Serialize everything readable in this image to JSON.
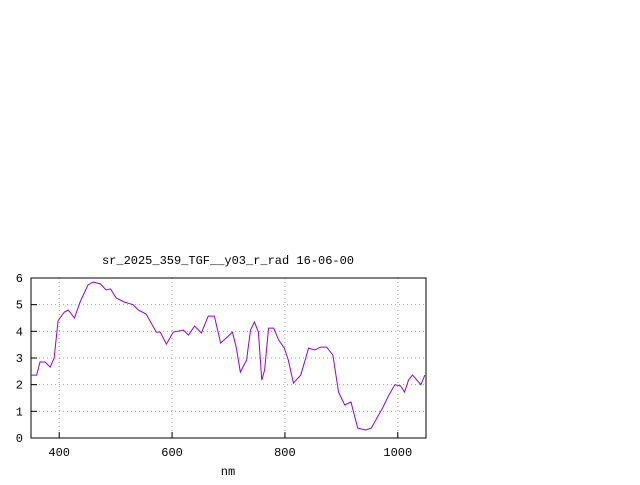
{
  "chart_data": {
    "type": "line",
    "title": "sr_2025_359_TGF__y03_r_rad 16-06-00",
    "x_label": "nm",
    "x": [
      350,
      360,
      366,
      375,
      384,
      391,
      398,
      409,
      416,
      427,
      437,
      451,
      460,
      473,
      483,
      491,
      501,
      515,
      531,
      540,
      554,
      562,
      572,
      579,
      590,
      602,
      620,
      629,
      640,
      652,
      664,
      675,
      686,
      696,
      707,
      714,
      721,
      732,
      739,
      746,
      753,
      759,
      764,
      771,
      780,
      789,
      799,
      806,
      815,
      828,
      842,
      853,
      863,
      874,
      885,
      895,
      906,
      917,
      929,
      943,
      953,
      963,
      973,
      984,
      995,
      1005,
      1012,
      1019,
      1026,
      1034,
      1041,
      1048
    ],
    "series": [
      {
        "name": null,
        "color": "#9400d3",
        "values": [
          2.36,
          2.36,
          2.85,
          2.85,
          2.66,
          3.0,
          4.4,
          4.72,
          4.8,
          4.5,
          5.1,
          5.74,
          5.85,
          5.78,
          5.55,
          5.59,
          5.25,
          5.1,
          5.0,
          4.8,
          4.65,
          4.35,
          3.97,
          3.97,
          3.52,
          3.97,
          4.05,
          3.86,
          4.2,
          3.94,
          4.57,
          4.57,
          3.56,
          3.75,
          3.97,
          3.37,
          2.47,
          2.92,
          4.05,
          4.35,
          3.97,
          2.17,
          2.55,
          4.12,
          4.12,
          3.67,
          3.37,
          2.92,
          2.06,
          2.36,
          3.37,
          3.3,
          3.41,
          3.41,
          3.11,
          1.72,
          1.24,
          1.35,
          0.37,
          0.3,
          0.37,
          0.75,
          1.12,
          1.6,
          2.0,
          1.95,
          1.72,
          2.17,
          2.36,
          2.17,
          2.0,
          2.36
        ]
      }
    ],
    "xlim": [
      350,
      1050
    ],
    "xticks": [
      400,
      600,
      800,
      1000
    ],
    "ylim": [
      0,
      6
    ],
    "yticks": [
      0,
      1,
      2,
      3,
      4,
      5,
      6
    ],
    "grid": true
  }
}
